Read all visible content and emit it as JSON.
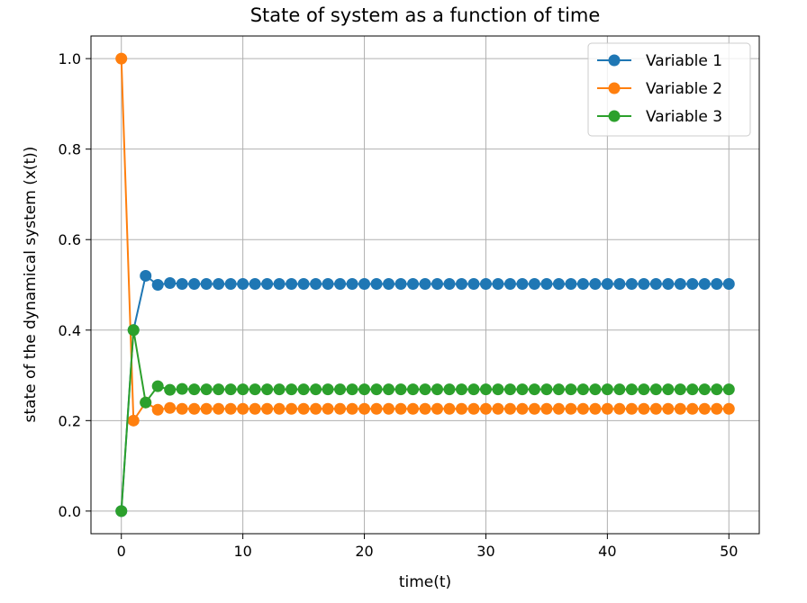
{
  "chart_data": {
    "type": "line",
    "title": "State of system as a function of time",
    "xlabel": "time(t)",
    "ylabel": "state of the dynamical system (x(t))",
    "xlim": [
      -2.5,
      52.5
    ],
    "ylim": [
      -0.05,
      1.05
    ],
    "xticks": [
      0,
      10,
      20,
      30,
      40,
      50
    ],
    "yticks": [
      0.0,
      0.2,
      0.4,
      0.6,
      0.8,
      1.0
    ],
    "xtick_labels": [
      "0",
      "10",
      "20",
      "30",
      "40",
      "50"
    ],
    "ytick_labels": [
      "0.0",
      "0.2",
      "0.4",
      "0.6",
      "0.8",
      "1.0"
    ],
    "grid": true,
    "legend_position": "top-right",
    "x": [
      0,
      1,
      2,
      3,
      4,
      5,
      6,
      7,
      8,
      9,
      10,
      11,
      12,
      13,
      14,
      15,
      16,
      17,
      18,
      19,
      20,
      21,
      22,
      23,
      24,
      25,
      26,
      27,
      28,
      29,
      30,
      31,
      32,
      33,
      34,
      35,
      36,
      37,
      38,
      39,
      40,
      41,
      42,
      43,
      44,
      45,
      46,
      47,
      48,
      49,
      50
    ],
    "series": [
      {
        "name": "Variable 1",
        "color": "#1f77b4",
        "values": [
          0.0,
          0.4,
          0.52,
          0.5,
          0.504,
          0.502,
          0.502,
          0.502,
          0.502,
          0.502,
          0.502,
          0.502,
          0.502,
          0.502,
          0.502,
          0.502,
          0.502,
          0.502,
          0.502,
          0.502,
          0.502,
          0.502,
          0.502,
          0.502,
          0.502,
          0.502,
          0.502,
          0.502,
          0.502,
          0.502,
          0.502,
          0.502,
          0.502,
          0.502,
          0.502,
          0.502,
          0.502,
          0.502,
          0.502,
          0.502,
          0.502,
          0.502,
          0.502,
          0.502,
          0.502,
          0.502,
          0.502,
          0.502,
          0.502,
          0.502,
          0.502
        ]
      },
      {
        "name": "Variable 2",
        "color": "#ff7f0e",
        "values": [
          1.0,
          0.2,
          0.24,
          0.224,
          0.228,
          0.226,
          0.226,
          0.226,
          0.226,
          0.226,
          0.226,
          0.226,
          0.226,
          0.226,
          0.226,
          0.226,
          0.226,
          0.226,
          0.226,
          0.226,
          0.226,
          0.226,
          0.226,
          0.226,
          0.226,
          0.226,
          0.226,
          0.226,
          0.226,
          0.226,
          0.226,
          0.226,
          0.226,
          0.226,
          0.226,
          0.226,
          0.226,
          0.226,
          0.226,
          0.226,
          0.226,
          0.226,
          0.226,
          0.226,
          0.226,
          0.226,
          0.226,
          0.226,
          0.226,
          0.226,
          0.226
        ]
      },
      {
        "name": "Variable 3",
        "color": "#2ca02c",
        "values": [
          0.0,
          0.4,
          0.24,
          0.276,
          0.268,
          0.27,
          0.269,
          0.269,
          0.269,
          0.269,
          0.269,
          0.269,
          0.269,
          0.269,
          0.269,
          0.269,
          0.269,
          0.269,
          0.269,
          0.269,
          0.269,
          0.269,
          0.269,
          0.269,
          0.269,
          0.269,
          0.269,
          0.269,
          0.269,
          0.269,
          0.269,
          0.269,
          0.269,
          0.269,
          0.269,
          0.269,
          0.269,
          0.269,
          0.269,
          0.269,
          0.269,
          0.269,
          0.269,
          0.269,
          0.269,
          0.269,
          0.269,
          0.269,
          0.269,
          0.269,
          0.269
        ]
      }
    ]
  }
}
